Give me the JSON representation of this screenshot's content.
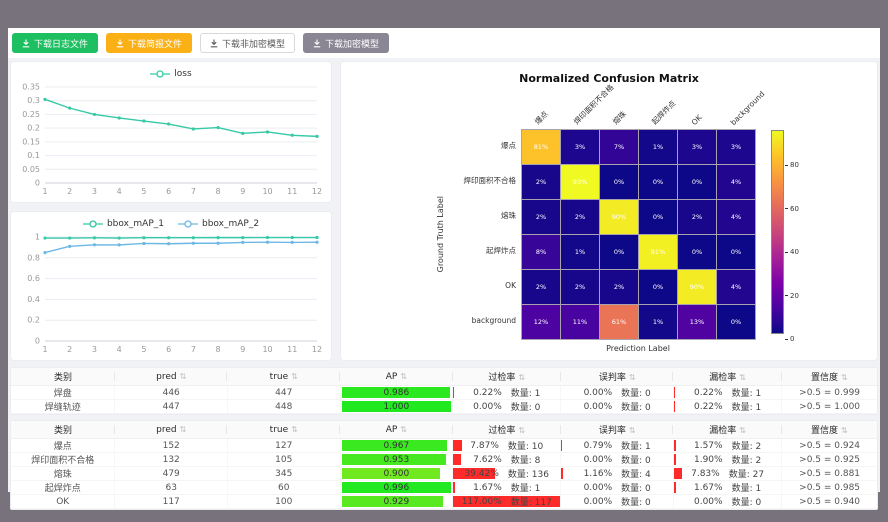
{
  "toolbar": {
    "buttons": [
      {
        "name": "download-log-button",
        "label": "下载日志文件",
        "bg": "#1dbf60",
        "fg": "#ffffff",
        "border": "#1dbf60"
      },
      {
        "name": "download-report-button",
        "label": "下载简报文件",
        "bg": "#fbb116",
        "fg": "#ffffff",
        "border": "#fbb116"
      },
      {
        "name": "download-unencrypted-model-button",
        "label": "下载非加密模型",
        "bg": "#ffffff",
        "fg": "#595959",
        "border": "#d9d9d9"
      },
      {
        "name": "download-encrypted-model-button",
        "label": "下载加密模型",
        "bg": "#8b8693",
        "fg": "#ffffff",
        "border": "#8b8693"
      }
    ]
  },
  "chart_data": [
    {
      "id": "loss",
      "type": "line",
      "x": [
        1,
        2,
        3,
        4,
        5,
        6,
        7,
        8,
        9,
        10,
        11,
        12
      ],
      "series": [
        {
          "name": "loss",
          "color": "#35c9a5",
          "values": [
            0.305,
            0.273,
            0.25,
            0.237,
            0.226,
            0.215,
            0.197,
            0.202,
            0.181,
            0.186,
            0.174,
            0.17
          ]
        }
      ],
      "ylim": [
        0,
        0.35
      ],
      "yticks": [
        0,
        0.05,
        0.1,
        0.15,
        0.2,
        0.25,
        0.3,
        0.35
      ],
      "grid": true,
      "legend_position": "top"
    },
    {
      "id": "bbox_map",
      "type": "line",
      "x": [
        1,
        2,
        3,
        4,
        5,
        6,
        7,
        8,
        9,
        10,
        11,
        12
      ],
      "series": [
        {
          "name": "bbox_mAP_1",
          "color": "#35c9a5",
          "values": [
            0.99,
            0.99,
            0.992,
            0.99,
            0.993,
            0.993,
            0.993,
            0.994,
            0.994,
            0.995,
            0.995,
            0.995
          ]
        },
        {
          "name": "bbox_mAP_2",
          "color": "#6cb8e4",
          "values": [
            0.85,
            0.91,
            0.925,
            0.924,
            0.938,
            0.935,
            0.94,
            0.94,
            0.948,
            0.95,
            0.948,
            0.95
          ]
        }
      ],
      "ylim": [
        0,
        1
      ],
      "yticks": [
        0,
        0.2,
        0.4,
        0.6,
        0.8,
        1
      ],
      "grid": true,
      "legend_position": "top"
    },
    {
      "id": "confusion_matrix",
      "type": "heatmap",
      "title": "Normalized Confusion Matrix",
      "xlabel": "Prediction Label",
      "ylabel": "Ground Truth Label",
      "labels": [
        "爆点",
        "焊印面积不合格",
        "熔珠",
        "起焊炸点",
        "OK",
        "background"
      ],
      "values_percent": [
        [
          81,
          3,
          7,
          1,
          3,
          3
        ],
        [
          2,
          93,
          0,
          0,
          0,
          4
        ],
        [
          2,
          2,
          90,
          0,
          2,
          4
        ],
        [
          8,
          1,
          0,
          91,
          0,
          0
        ],
        [
          2,
          2,
          2,
          0,
          90,
          4
        ],
        [
          12,
          11,
          61,
          1,
          13,
          0
        ]
      ],
      "vmin": 0,
      "vmax": 93,
      "colormap": "plasma",
      "colorbar_ticks": [
        0,
        20,
        40,
        60,
        80
      ]
    }
  ],
  "tables": {
    "count_prefix": "数量:",
    "rate_bar_color": "#ff2b2b",
    "columns": [
      {
        "key": "cls",
        "label": "类别",
        "sortable": false,
        "width": "12%"
      },
      {
        "key": "pred",
        "label": "pred",
        "sortable": true,
        "width": "13%"
      },
      {
        "key": "true",
        "label": "true",
        "sortable": true,
        "width": "13%"
      },
      {
        "key": "ap",
        "label": "AP",
        "sortable": true,
        "width": "13%"
      },
      {
        "key": "over",
        "label": "过检率",
        "sortable": true,
        "width": "12.5%"
      },
      {
        "key": "mis",
        "label": "误判率",
        "sortable": true,
        "width": "13%"
      },
      {
        "key": "miss",
        "label": "漏检率",
        "sortable": true,
        "width": "12.5%"
      },
      {
        "key": "conf",
        "label": "置信度",
        "sortable": true,
        "width": "11%"
      }
    ],
    "table1": {
      "rows": [
        {
          "cls": "焊盘",
          "pred": "446",
          "true": "447",
          "ap": "0.986",
          "over": {
            "pct": "0.22%",
            "value": 0.22,
            "count": "1"
          },
          "mis": {
            "pct": "0.00%",
            "value": 0,
            "count": "0"
          },
          "miss": {
            "pct": "0.22%",
            "value": 0.22,
            "count": "1"
          },
          "conf": ">0.5 = 0.999"
        },
        {
          "cls": "焊缝轨迹",
          "pred": "447",
          "true": "448",
          "ap": "1.000",
          "over": {
            "pct": "0.00%",
            "value": 0,
            "count": "0"
          },
          "mis": {
            "pct": "0.00%",
            "value": 0,
            "count": "0"
          },
          "miss": {
            "pct": "0.22%",
            "value": 0.22,
            "count": "1"
          },
          "conf": ">0.5 = 1.000"
        }
      ]
    },
    "table2": {
      "rows": [
        {
          "cls": "爆点",
          "pred": "152",
          "true": "127",
          "ap": "0.967",
          "over": {
            "pct": "7.87%",
            "value": 7.87,
            "count": "10"
          },
          "mis": {
            "pct": "0.79%",
            "value": 0.79,
            "count": "1"
          },
          "miss": {
            "pct": "1.57%",
            "value": 1.57,
            "count": "2"
          },
          "conf": ">0.5 = 0.924"
        },
        {
          "cls": "焊印面积不合格",
          "pred": "132",
          "true": "105",
          "ap": "0.953",
          "over": {
            "pct": "7.62%",
            "value": 7.62,
            "count": "8"
          },
          "mis": {
            "pct": "0.00%",
            "value": 0,
            "count": "0"
          },
          "miss": {
            "pct": "1.90%",
            "value": 1.9,
            "count": "2"
          },
          "conf": ">0.5 = 0.925"
        },
        {
          "cls": "熔珠",
          "pred": "479",
          "true": "345",
          "ap": "0.900",
          "over": {
            "pct": "39.42%",
            "value": 39.42,
            "count": "136"
          },
          "mis": {
            "pct": "1.16%",
            "value": 1.16,
            "count": "4"
          },
          "miss": {
            "pct": "7.83%",
            "value": 7.83,
            "count": "27"
          },
          "conf": ">0.5 = 0.881"
        },
        {
          "cls": "起焊炸点",
          "pred": "63",
          "true": "60",
          "ap": "0.996",
          "over": {
            "pct": "1.67%",
            "value": 1.67,
            "count": "1"
          },
          "mis": {
            "pct": "0.00%",
            "value": 0,
            "count": "0"
          },
          "miss": {
            "pct": "1.67%",
            "value": 1.67,
            "count": "1"
          },
          "conf": ">0.5 = 0.985"
        },
        {
          "cls": "OK",
          "pred": "117",
          "true": "100",
          "ap": "0.929",
          "over": {
            "pct": "117.00%",
            "value": 117,
            "count": "117"
          },
          "mis": {
            "pct": "0.00%",
            "value": 0,
            "count": "0"
          },
          "miss": {
            "pct": "0.00%",
            "value": 0,
            "count": "0"
          },
          "conf": ">0.5 = 0.940"
        }
      ]
    }
  }
}
